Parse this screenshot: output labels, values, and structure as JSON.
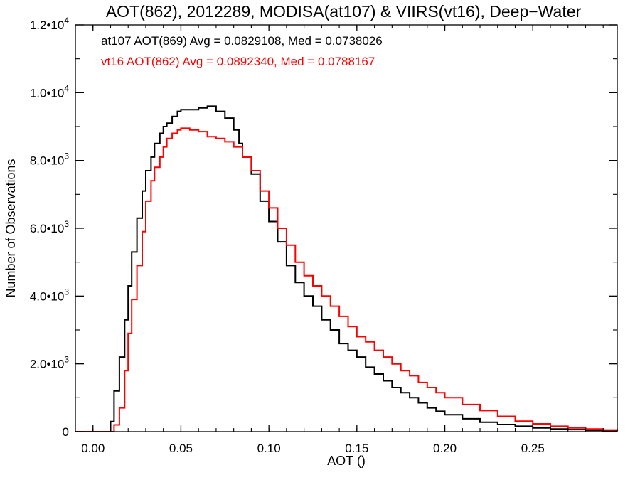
{
  "chart_data": {
    "type": "line",
    "subtype": "step-histogram",
    "title": "AOT(862), 2012289, MODISA(at107) & VIIRS(vt16), Deep−Water",
    "xlabel": "AOT ()",
    "ylabel": "Number of Observations",
    "xlim": [
      -0.01,
      0.298
    ],
    "ylim": [
      0,
      12000
    ],
    "x_ticks": [
      {
        "value": 0.0,
        "label": "0.00"
      },
      {
        "value": 0.05,
        "label": "0.05"
      },
      {
        "value": 0.1,
        "label": "0.10"
      },
      {
        "value": 0.15,
        "label": "0.15"
      },
      {
        "value": 0.2,
        "label": "0.20"
      },
      {
        "value": 0.25,
        "label": "0.25"
      }
    ],
    "y_ticks": [
      {
        "value": 0,
        "label": "0",
        "exp": ""
      },
      {
        "value": 2000,
        "label": "2.0•10",
        "exp": "3"
      },
      {
        "value": 4000,
        "label": "4.0•10",
        "exp": "3"
      },
      {
        "value": 6000,
        "label": "6.0•10",
        "exp": "3"
      },
      {
        "value": 8000,
        "label": "8.0•10",
        "exp": "3"
      },
      {
        "value": 10000,
        "label": "1.0•10",
        "exp": "4"
      },
      {
        "value": 12000,
        "label": "1.2•10",
        "exp": "4"
      }
    ],
    "grid": false,
    "legend": "top-left",
    "series": [
      {
        "name": "at107",
        "color": "#000000",
        "annotation": "at107 AOT(869) Avg = 0.0829108, Med = 0.0738026",
        "x": [
          -0.01,
          0.0,
          0.008,
          0.01,
          0.012,
          0.015,
          0.018,
          0.02,
          0.022,
          0.025,
          0.028,
          0.03,
          0.033,
          0.035,
          0.038,
          0.04,
          0.042,
          0.045,
          0.048,
          0.05,
          0.055,
          0.06,
          0.065,
          0.07,
          0.075,
          0.08,
          0.083,
          0.085,
          0.09,
          0.095,
          0.1,
          0.105,
          0.11,
          0.115,
          0.12,
          0.125,
          0.13,
          0.135,
          0.14,
          0.145,
          0.15,
          0.155,
          0.16,
          0.165,
          0.17,
          0.175,
          0.18,
          0.185,
          0.19,
          0.195,
          0.2,
          0.21,
          0.22,
          0.23,
          0.24,
          0.25,
          0.26,
          0.27,
          0.28,
          0.29,
          0.298
        ],
        "y": [
          0,
          0,
          0,
          300,
          1200,
          2200,
          3300,
          4300,
          5300,
          6300,
          7100,
          7700,
          8100,
          8500,
          8800,
          9000,
          9100,
          9300,
          9450,
          9500,
          9500,
          9550,
          9600,
          9450,
          9250,
          8900,
          8500,
          8100,
          7600,
          6800,
          6200,
          5600,
          4900,
          4400,
          4000,
          3700,
          3300,
          3000,
          2600,
          2400,
          2200,
          1900,
          1700,
          1500,
          1300,
          1150,
          1000,
          850,
          700,
          600,
          500,
          380,
          280,
          210,
          160,
          110,
          80,
          60,
          40,
          30,
          20
        ]
      },
      {
        "name": "vt16",
        "color": "#ff0000",
        "annotation": "vt16 AOT(862) Avg = 0.0892340, Med = 0.0788167",
        "x": [
          -0.01,
          0.0,
          0.01,
          0.012,
          0.015,
          0.018,
          0.02,
          0.022,
          0.025,
          0.028,
          0.03,
          0.033,
          0.035,
          0.038,
          0.04,
          0.042,
          0.045,
          0.048,
          0.05,
          0.055,
          0.06,
          0.065,
          0.07,
          0.075,
          0.08,
          0.085,
          0.09,
          0.095,
          0.1,
          0.105,
          0.11,
          0.115,
          0.12,
          0.125,
          0.13,
          0.135,
          0.14,
          0.145,
          0.15,
          0.155,
          0.16,
          0.165,
          0.17,
          0.175,
          0.18,
          0.185,
          0.19,
          0.195,
          0.2,
          0.21,
          0.22,
          0.23,
          0.24,
          0.25,
          0.26,
          0.27,
          0.28,
          0.29,
          0.298
        ],
        "y": [
          0,
          0,
          0,
          200,
          700,
          1800,
          2900,
          3900,
          4900,
          5900,
          6800,
          7400,
          7800,
          8100,
          8400,
          8650,
          8800,
          8900,
          8950,
          8900,
          8850,
          8700,
          8650,
          8550,
          8400,
          8100,
          7700,
          7100,
          6600,
          6000,
          5500,
          5000,
          4600,
          4300,
          4000,
          3700,
          3400,
          3100,
          2800,
          2650,
          2400,
          2200,
          2000,
          1800,
          1650,
          1450,
          1300,
          1150,
          1000,
          800,
          620,
          450,
          310,
          230,
          160,
          110,
          80,
          50,
          40
        ]
      }
    ]
  }
}
